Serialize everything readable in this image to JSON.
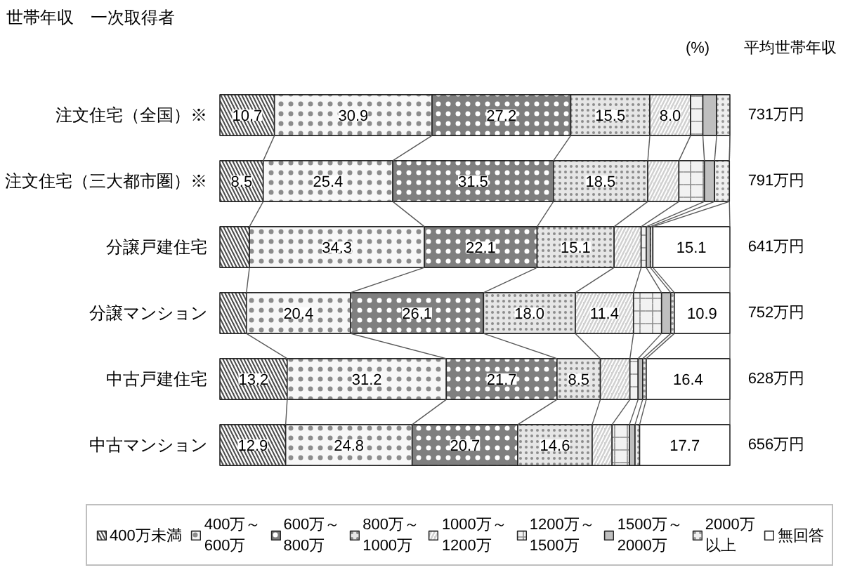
{
  "chart_data": {
    "type": "bar",
    "orientation": "horizontal",
    "stacked": true,
    "title": "世帯年収　一次取得者",
    "y2label": "平均世帯年収",
    "annotations": [
      "(%)"
    ],
    "categories": [
      "注文住宅（全国）※",
      "注文住宅（三大都市圏）※",
      "分譲戸建住宅",
      "分譲マンション",
      "中古戸建住宅",
      "中古マンション"
    ],
    "y2_categories": [
      "731万円",
      "791万円",
      "641万円",
      "752万円",
      "628万円",
      "656万円"
    ],
    "xlim": [
      0,
      100
    ],
    "tick_labels": "y",
    "legend": "bottom",
    "series": [
      {
        "name": "400万未満",
        "color": "#4d4d4d",
        "values": [
          10.7,
          8.5,
          5.8,
          5.2,
          13.2,
          12.9
        ],
        "value_labels": [
          "10.7",
          "8.5",
          null,
          null,
          "13.2",
          "12.9"
        ]
      },
      {
        "name": "400万～600万",
        "color": "#f7f7f7",
        "values": [
          30.9,
          25.4,
          34.3,
          20.4,
          31.2,
          24.8
        ],
        "value_labels": [
          "30.9",
          "25.4",
          "34.3",
          "20.4",
          "31.2",
          "24.8"
        ]
      },
      {
        "name": "600万～800万",
        "color": "#7f7f7f",
        "values": [
          27.2,
          31.5,
          22.1,
          26.1,
          21.7,
          20.7
        ],
        "value_labels": [
          "27.2",
          "31.5",
          "22.1",
          "26.1",
          "21.7",
          "20.7"
        ]
      },
      {
        "name": "800万～1000万",
        "color": "#e6e6e6",
        "values": [
          15.5,
          18.5,
          15.1,
          18.0,
          8.5,
          14.6
        ],
        "value_labels": [
          "15.5",
          "18.5",
          "15.1",
          "18.0",
          "8.5",
          "14.6"
        ]
      },
      {
        "name": "1000万～1200万",
        "color": "#d0d0d0",
        "values": [
          8.0,
          6.1,
          5.3,
          11.4,
          5.8,
          3.9
        ],
        "value_labels": [
          "8.0",
          null,
          null,
          "11.4",
          null,
          null
        ]
      },
      {
        "name": "1200万～1500万",
        "color": "#f2f2f2",
        "values": [
          2.4,
          5.0,
          1.0,
          5.5,
          1.6,
          3.4
        ]
      },
      {
        "name": "1500万～2000万",
        "color": "#bfbfbf",
        "values": [
          2.7,
          2.0,
          0.8,
          1.8,
          0.9,
          1.1
        ]
      },
      {
        "name": "2000万以上",
        "color": "#eeeeee",
        "values": [
          2.6,
          2.9,
          0.5,
          0.7,
          0.7,
          0.9
        ]
      },
      {
        "name": "無回答",
        "color": "#ffffff",
        "values": [
          null,
          null,
          15.1,
          10.9,
          16.4,
          17.7
        ],
        "value_labels": [
          null,
          null,
          "15.1",
          "10.9",
          "16.4",
          "17.7"
        ]
      }
    ]
  }
}
